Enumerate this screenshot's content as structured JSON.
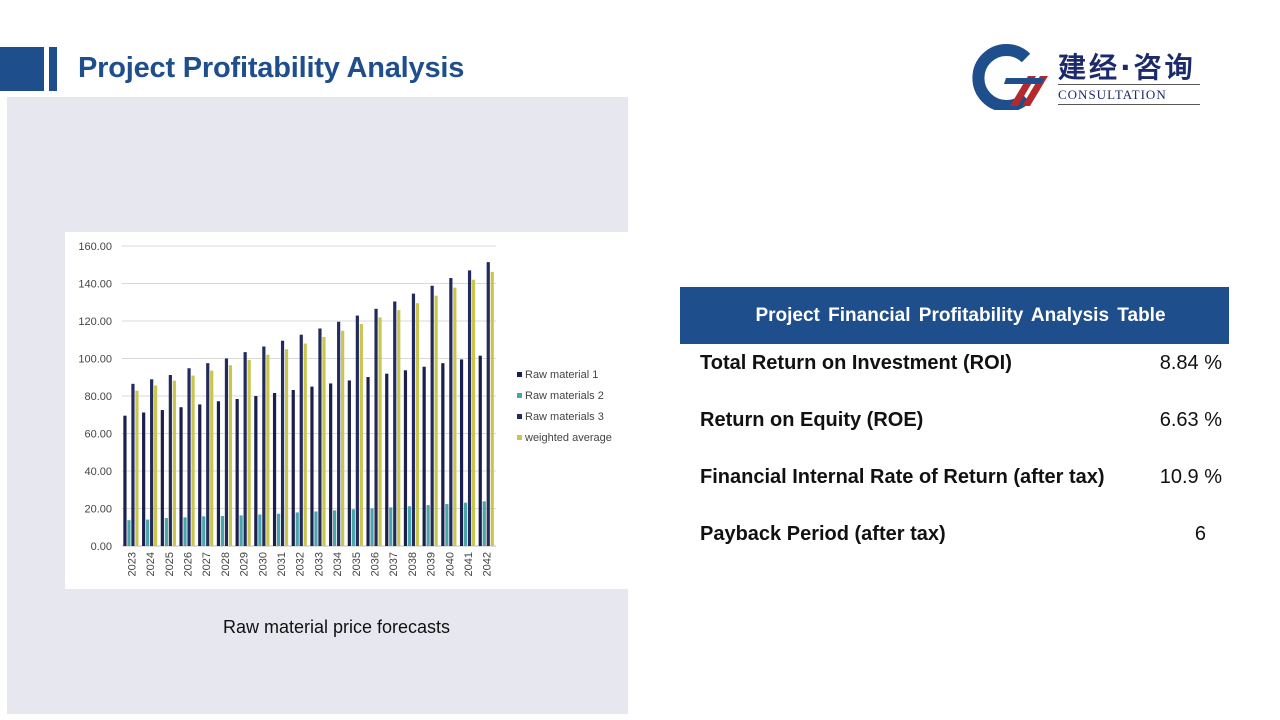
{
  "header": {
    "title": "Project Profitability Analysis"
  },
  "logo": {
    "cn": "建经·咨询",
    "en": "CONSULTATION"
  },
  "colors": {
    "brand": "#1f4e8c",
    "panel": "#e7e7f0"
  },
  "chart_caption": "Raw material price forecasts",
  "chart_data": {
    "type": "bar",
    "title": "",
    "xlabel": "",
    "ylabel": "",
    "ylim": [
      0,
      160
    ],
    "yticks": [
      "0.00",
      "20.00",
      "40.00",
      "60.00",
      "80.00",
      "100.00",
      "120.00",
      "140.00",
      "160.00"
    ],
    "grid": true,
    "legend_position": "right",
    "categories": [
      "2023",
      "2024",
      "2025",
      "2026",
      "2027",
      "2028",
      "2029",
      "2030",
      "2031",
      "2032",
      "2033",
      "2034",
      "2035",
      "2036",
      "2037",
      "2038",
      "2039",
      "2040",
      "2041",
      "2042"
    ],
    "series": [
      {
        "name": "Raw material 1",
        "color": "#1b1f4d",
        "values": [
          69.5,
          71.2,
          72.5,
          74.0,
          75.5,
          77.2,
          78.4,
          80.0,
          81.6,
          83.2,
          85.0,
          86.7,
          88.3,
          90.1,
          91.9,
          93.7,
          95.6,
          97.5,
          99.5,
          101.5
        ]
      },
      {
        "name": "Raw materials 2",
        "color": "#4aa5a9",
        "values": [
          13.8,
          14.1,
          14.9,
          15.3,
          15.8,
          16.0,
          16.3,
          16.8,
          17.2,
          17.9,
          18.4,
          19.0,
          19.6,
          20.1,
          20.6,
          21.2,
          21.8,
          22.4,
          23.1,
          23.8
        ]
      },
      {
        "name": "Raw materials 3",
        "color": "#232a5e",
        "values": [
          86.5,
          88.9,
          91.2,
          94.8,
          97.5,
          100.0,
          103.4,
          106.4,
          109.5,
          112.7,
          116.0,
          119.6,
          122.9,
          126.5,
          130.4,
          134.6,
          138.8,
          142.9,
          147.0,
          151.4
        ]
      },
      {
        "name": "weighted average",
        "color": "#c9c64f",
        "values": [
          82.8,
          85.6,
          88.2,
          90.9,
          93.5,
          96.4,
          99.2,
          102.0,
          105.0,
          108.0,
          111.5,
          114.8,
          118.4,
          121.9,
          125.8,
          129.5,
          133.5,
          137.8,
          142.0,
          146.2
        ]
      }
    ]
  },
  "fin_table": {
    "title": "Project Financial Profitability Analysis Table",
    "rows": [
      {
        "label": "Total Return on Investment (ROI)",
        "value": "8.84 %"
      },
      {
        "label": "Return on Equity (ROE)",
        "value": "6.63 %"
      },
      {
        "label": "Financial Internal Rate of Return (after tax)",
        "value": "10.9 %"
      },
      {
        "label": "Payback Period (after tax)",
        "value": "6"
      }
    ]
  }
}
